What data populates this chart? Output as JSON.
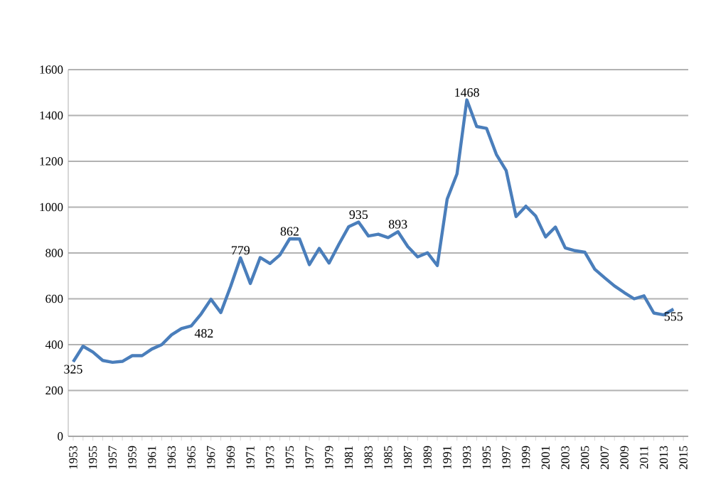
{
  "chart_data": {
    "type": "line",
    "categories": [
      "1953",
      null,
      "1955",
      null,
      "1957",
      null,
      "1959",
      null,
      "1961",
      null,
      "1963",
      null,
      "1965",
      null,
      "1967",
      null,
      "1969",
      null,
      "1971",
      null,
      "1973",
      null,
      "1975",
      null,
      "1977",
      null,
      "1979",
      null,
      "1981",
      null,
      "1983",
      null,
      "1985",
      null,
      "1987",
      null,
      "1989",
      null,
      "1991",
      null,
      "1993",
      null,
      "1995",
      null,
      "1997",
      null,
      "1999",
      null,
      "2001",
      null,
      "2003",
      null,
      "2005",
      null,
      "2007",
      null,
      "2009",
      null,
      "2011",
      null,
      "2013",
      null,
      "2015"
    ],
    "series": [
      {
        "color": "#4a7ebb",
        "values": [
          325,
          393,
          368,
          331,
          323,
          327,
          352,
          352,
          381,
          400,
          443,
          470,
          482,
          534,
          598,
          540,
          654,
          779,
          667,
          780,
          754,
          791,
          862,
          861,
          749,
          820,
          756,
          838,
          915,
          935,
          874,
          882,
          867,
          893,
          828,
          783,
          801,
          745,
          1035,
          1145,
          1468,
          1352,
          1344,
          1230,
          1159,
          959,
          1004,
          961,
          870,
          913,
          822,
          810,
          803,
          729,
          692,
          656,
          627,
          600,
          613,
          538,
          530,
          555,
          null
        ],
        "value_labels": [
          "325",
          null,
          null,
          null,
          null,
          null,
          null,
          null,
          null,
          null,
          null,
          null,
          "482",
          null,
          null,
          null,
          null,
          "779",
          null,
          null,
          null,
          null,
          "862",
          null,
          null,
          null,
          null,
          null,
          null,
          "935",
          null,
          null,
          null,
          "893",
          null,
          null,
          null,
          null,
          null,
          null,
          "1468",
          null,
          null,
          null,
          null,
          null,
          null,
          null,
          null,
          null,
          null,
          null,
          null,
          null,
          null,
          null,
          null,
          null,
          null,
          null,
          null,
          "555",
          null
        ]
      }
    ],
    "ylim": [
      0,
      1600
    ],
    "yticks": [
      0,
      200,
      400,
      600,
      800,
      1000,
      1200,
      1400,
      1600
    ],
    "grid": "y",
    "marker": "none",
    "line_style": "solid"
  }
}
